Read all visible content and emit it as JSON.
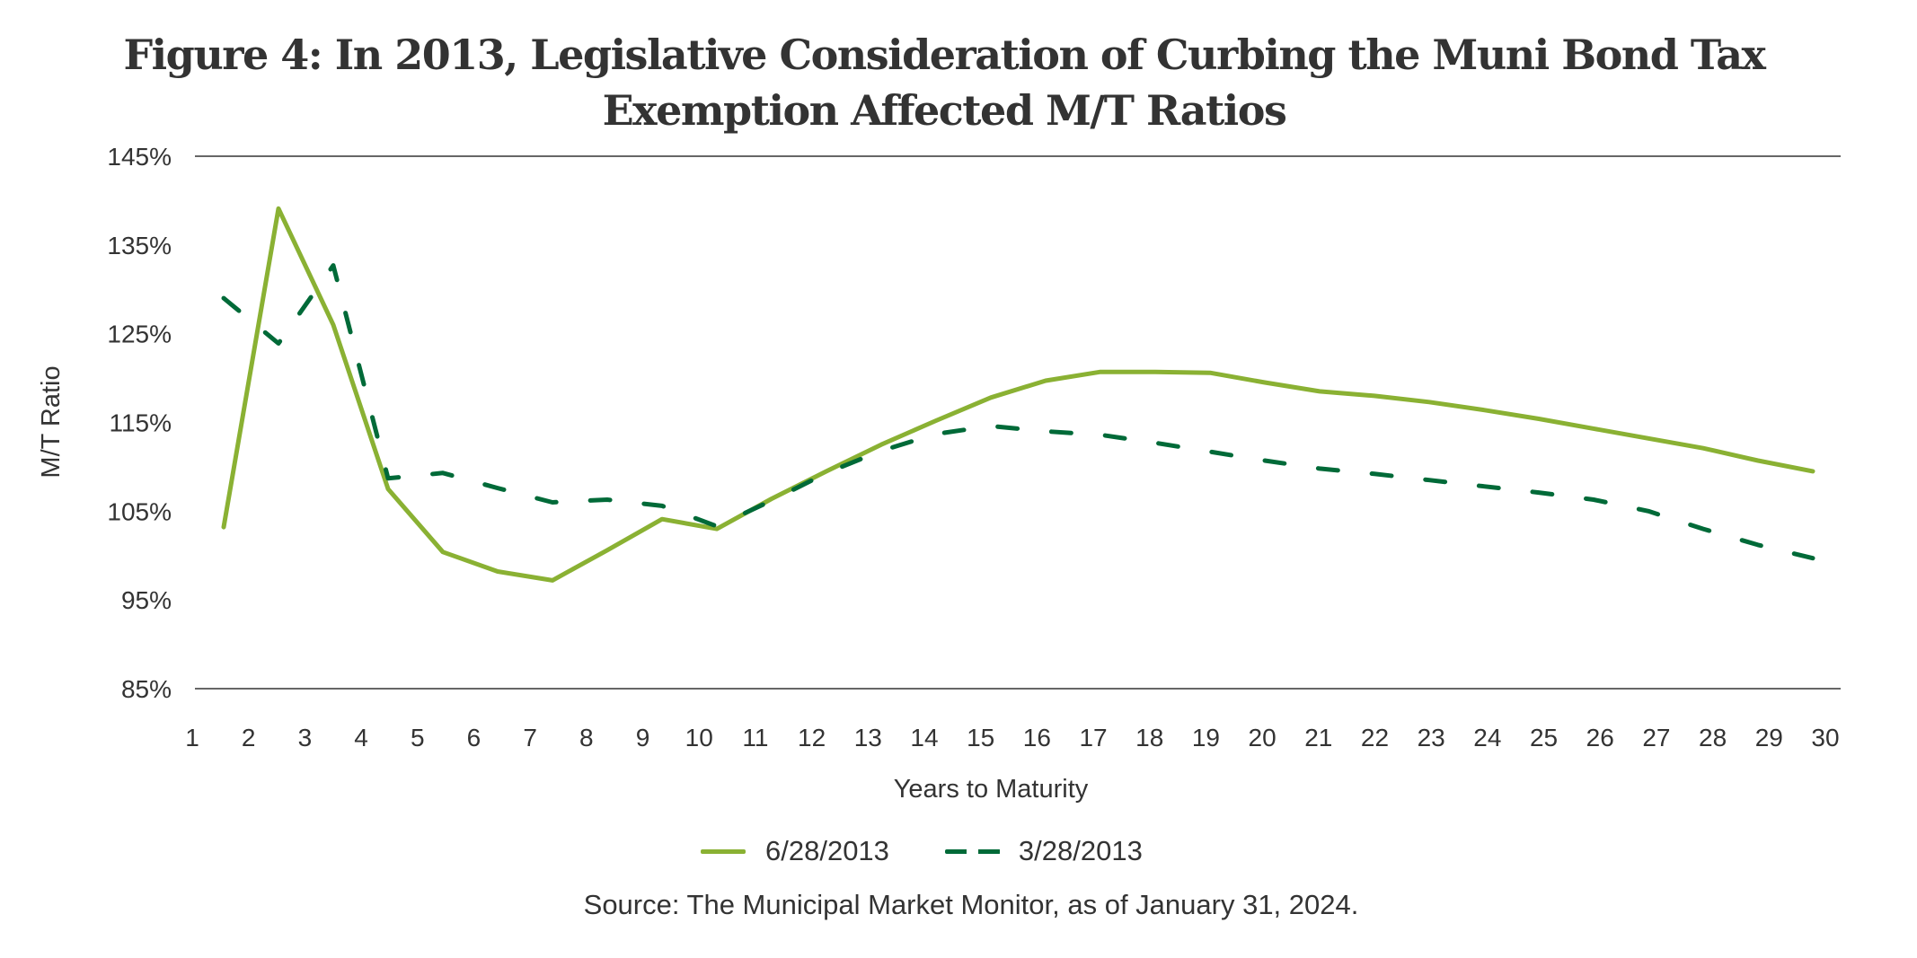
{
  "chart_data": {
    "type": "line",
    "title": "Figure 4: In 2013, Legislative Consideration of Curbing the Muni Bond Tax Exemption Affected M/T Ratios",
    "title_lines": [
      "Figure 4: In 2013, Legislative Consideration of Curbing the Muni Bond Tax",
      "Exemption Affected M/T Ratios"
    ],
    "xlabel": "Years to Maturity",
    "ylabel": "M/T Ratio",
    "x_tick_labels": [
      "1",
      "2",
      "3",
      "4",
      "5",
      "6",
      "7",
      "8",
      "9",
      "10",
      "11",
      "12",
      "13",
      "14",
      "15",
      "16",
      "17",
      "18",
      "19",
      "20",
      "21",
      "22",
      "23",
      "24",
      "25",
      "26",
      "27",
      "28",
      "29",
      "30"
    ],
    "y_ticks": [
      145,
      135,
      125,
      115,
      105,
      95,
      85
    ],
    "y_tick_labels": [
      "145%",
      "135%",
      "125%",
      "115%",
      "105%",
      "95%",
      "85%"
    ],
    "ylim": [
      85,
      145
    ],
    "y_unit": "%",
    "gridlines": [
      145,
      85
    ],
    "legend_position": "bottom-center",
    "x": [
      1,
      2,
      3,
      4,
      5,
      6,
      7,
      8,
      9,
      10,
      11,
      12,
      13,
      14,
      15,
      16,
      17,
      18,
      19,
      20,
      21,
      22,
      23,
      24,
      25,
      26,
      27,
      28,
      29,
      30
    ],
    "series": [
      {
        "name": "6/28/2013",
        "style": "solid",
        "color": "#8AB133",
        "values": [
          103.2,
          139.1,
          126.0,
          107.5,
          100.4,
          98.2,
          97.2,
          100.6,
          104.1,
          103.0,
          106.4,
          109.5,
          112.5,
          115.2,
          117.8,
          119.7,
          120.7,
          120.7,
          120.6,
          119.5,
          118.5,
          118.0,
          117.3,
          116.4,
          115.4,
          114.3,
          113.2,
          112.1,
          110.7,
          109.5
        ]
      },
      {
        "name": "3/28/2013",
        "style": "dashed",
        "color": "#006A38",
        "values": [
          129.0,
          123.9,
          132.7,
          108.7,
          109.3,
          107.6,
          106.0,
          106.3,
          105.6,
          103.3,
          106.2,
          109.3,
          111.8,
          113.7,
          114.6,
          114.0,
          113.6,
          112.7,
          111.7,
          110.7,
          109.8,
          109.2,
          108.5,
          107.8,
          107.1,
          106.3,
          105.0,
          103.0,
          101.2,
          99.7
        ]
      }
    ],
    "source": "Source: The Municipal Market Monitor, as of January 31, 2024."
  },
  "colors": {
    "text": "#333333",
    "axis_line": "#666666"
  }
}
